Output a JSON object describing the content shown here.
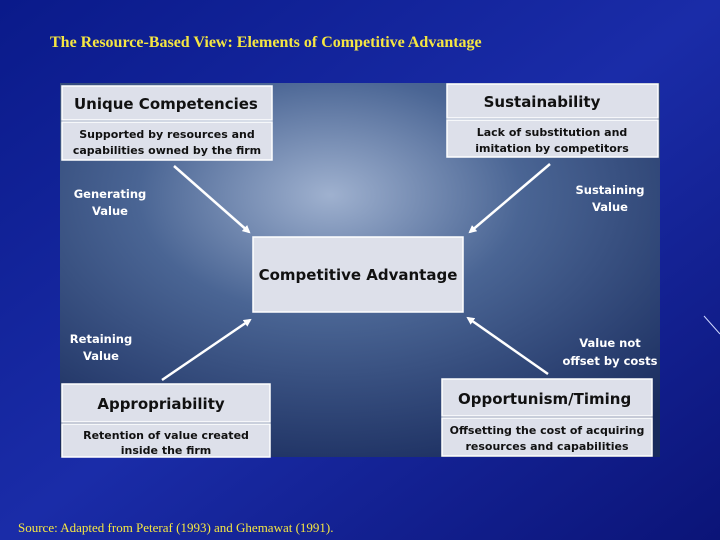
{
  "title": "The Resource-Based View: Elements of Competitive Advantage",
  "nodes": [
    {
      "label": "Unique Competencies",
      "description": [
        "Supported by resources and",
        "capabilities owned by the firm"
      ]
    },
    {
      "label": "Sustainability",
      "description": [
        "Lack of substitution and",
        "imitation by competitors"
      ]
    },
    {
      "label": "Appropriability",
      "description": [
        "Retention of value created",
        "inside the firm"
      ]
    },
    {
      "label": "Opportunism/Timing",
      "description": [
        "Offsetting the cost of acquiring",
        "resources and capabilities"
      ]
    }
  ],
  "center": {
    "label": "Competitive Advantage"
  },
  "edges": [
    {
      "label": [
        "Generating",
        "Value"
      ]
    },
    {
      "label": [
        "Sustaining",
        "Value"
      ]
    },
    {
      "label": [
        "Retaining",
        "Value"
      ]
    },
    {
      "label": [
        "Value not",
        "offset by costs"
      ]
    }
  ],
  "source": "Source: Adapted from Peteraf (1993) and Ghemawat (1991)."
}
